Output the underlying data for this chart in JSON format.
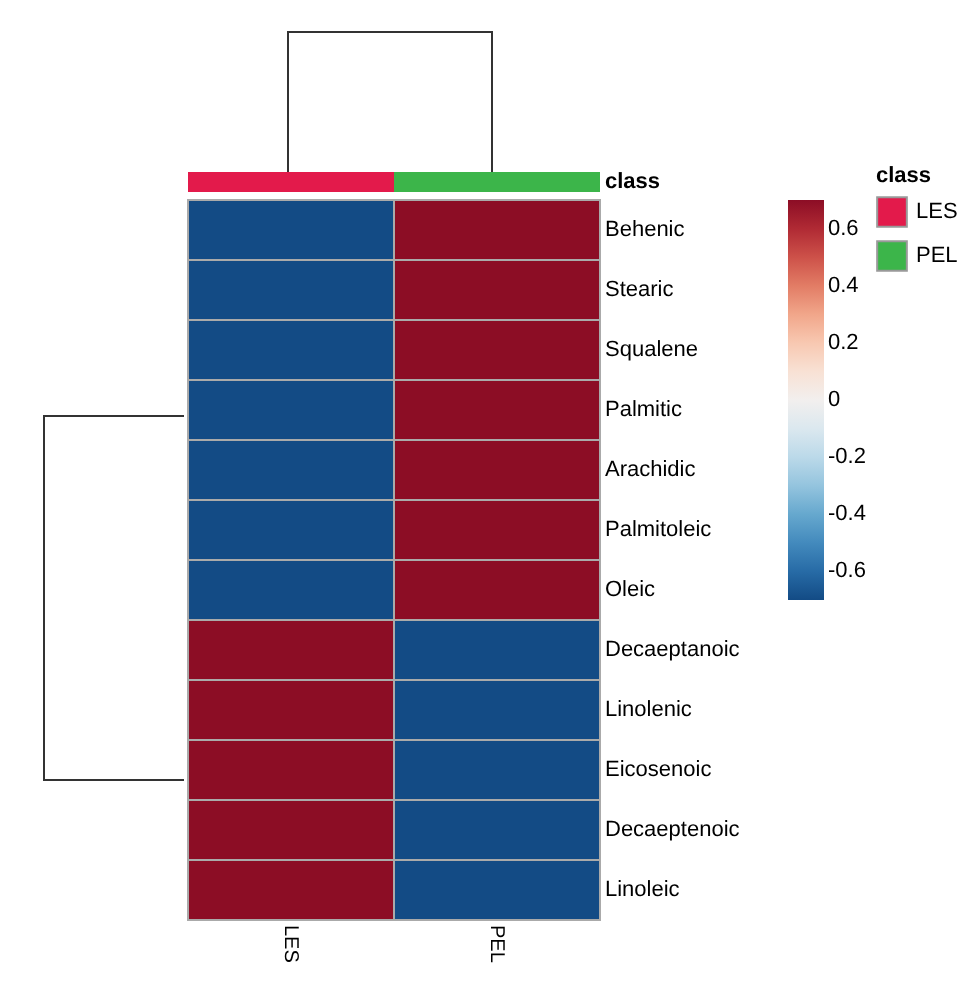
{
  "chart_data": {
    "type": "heatmap",
    "legend_title": "class",
    "annotations": [
      "class"
    ],
    "categories": [
      "LES",
      "PEL"
    ],
    "colors": [
      "#e31a4b",
      "#3cb54a"
    ],
    "y_categories": [
      "Behenic",
      "Stearic",
      "Squalene",
      "Palmitic",
      "Arachidic",
      "Palmitoleic",
      "Oleic",
      "Decaeptanoic",
      "Linolenic",
      "Eicosenoic",
      "Decaeptenoic",
      "Linoleic"
    ],
    "cells": [
      [
        -0.7,
        0.7
      ],
      [
        -0.7,
        0.7
      ],
      [
        -0.7,
        0.7
      ],
      [
        -0.7,
        0.7
      ],
      [
        -0.7,
        0.7
      ],
      [
        -0.7,
        0.7
      ],
      [
        -0.7,
        0.7
      ],
      [
        0.7,
        -0.7
      ],
      [
        0.7,
        -0.7
      ],
      [
        0.7,
        -0.7
      ],
      [
        0.7,
        -0.7
      ],
      [
        0.7,
        -0.7
      ]
    ],
    "clim": [
      -0.7,
      0.7
    ],
    "cticks": [
      0.6,
      0.4,
      0.2,
      0,
      -0.2,
      -0.4,
      -0.6
    ]
  }
}
